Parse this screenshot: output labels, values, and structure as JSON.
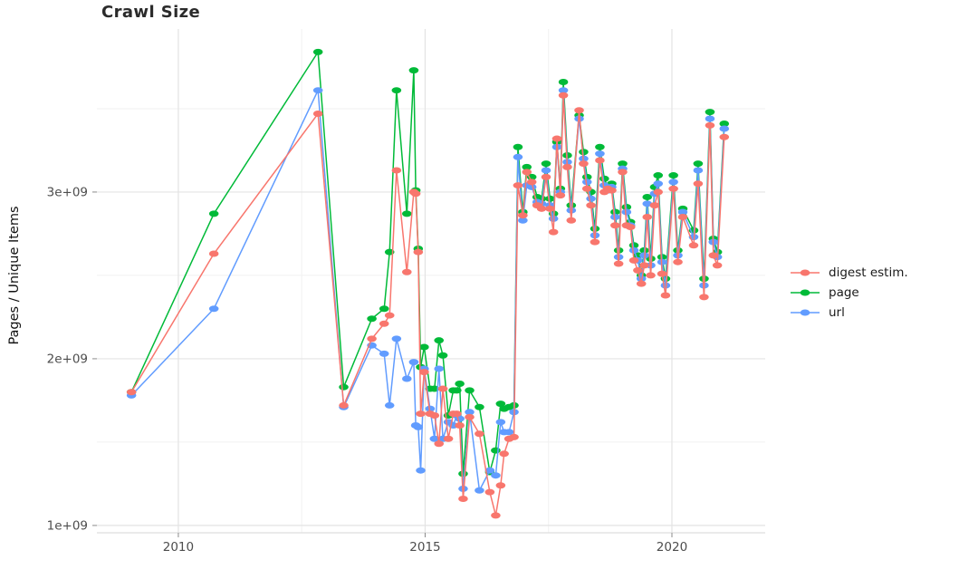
{
  "title": "Crawl Size",
  "chart_data": {
    "type": "line",
    "title": "Crawl Size",
    "xlabel": "",
    "ylabel": "Pages / Unique Items",
    "y_value_scale": "1e9",
    "grid": true,
    "legend_position": "right",
    "x_range": [
      2008.35,
      2021.89
    ],
    "y_range": [
      0.956,
      3.978
    ],
    "x_ticks": [
      {
        "label": "2010",
        "value": 2010
      },
      {
        "label": "2015",
        "value": 2015
      },
      {
        "label": "2020",
        "value": 2020
      }
    ],
    "y_ticks": [
      {
        "label": "1e+09",
        "value": 1
      },
      {
        "label": "2e+09",
        "value": 2
      },
      {
        "label": "3e+09",
        "value": 3
      }
    ],
    "x_minor": [
      2012.5,
      2017.5
    ],
    "y_minor": [
      1.5,
      2.5,
      3.5
    ],
    "x": [
      2009.05,
      2010.72,
      2012.83,
      2013.35,
      2013.92,
      2014.17,
      2014.28,
      2014.42,
      2014.63,
      2014.77,
      2014.81,
      2014.86,
      2014.91,
      2014.98,
      2015.1,
      2015.19,
      2015.28,
      2015.36,
      2015.47,
      2015.57,
      2015.64,
      2015.7,
      2015.77,
      2015.9,
      2016.1,
      2016.31,
      2016.43,
      2016.53,
      2016.6,
      2016.7,
      2016.8,
      2016.88,
      2016.98,
      2017.06,
      2017.16,
      2017.27,
      2017.36,
      2017.45,
      2017.53,
      2017.6,
      2017.67,
      2017.74,
      2017.8,
      2017.88,
      2017.96,
      2018.12,
      2018.21,
      2018.28,
      2018.36,
      2018.44,
      2018.54,
      2018.63,
      2018.7,
      2018.78,
      2018.85,
      2018.92,
      2019.0,
      2019.08,
      2019.16,
      2019.23,
      2019.31,
      2019.38,
      2019.44,
      2019.5,
      2019.57,
      2019.65,
      2019.72,
      2019.8,
      2019.87,
      2020.03,
      2020.12,
      2020.22,
      2020.44,
      2020.53,
      2020.65,
      2020.77,
      2020.84,
      2020.92,
      2021.06
    ],
    "draw_order": [
      1,
      2,
      0
    ],
    "series": [
      {
        "name": "digest estim.",
        "color": "#F8766D",
        "values": [
          1.8,
          2.63,
          3.47,
          1.72,
          2.12,
          2.21,
          2.26,
          3.13,
          2.52,
          3.0,
          2.99,
          2.64,
          1.67,
          1.92,
          1.67,
          1.66,
          1.49,
          1.82,
          1.52,
          1.67,
          1.67,
          1.6,
          1.16,
          1.65,
          1.55,
          1.2,
          1.06,
          1.24,
          1.43,
          1.52,
          1.53,
          3.04,
          2.86,
          3.12,
          3.06,
          2.92,
          2.9,
          3.09,
          2.9,
          2.76,
          3.32,
          2.98,
          3.58,
          3.15,
          2.83,
          3.49,
          3.17,
          3.02,
          2.92,
          2.7,
          3.19,
          3.0,
          3.02,
          3.01,
          2.8,
          2.57,
          3.12,
          2.8,
          2.79,
          2.59,
          2.53,
          2.45,
          2.56,
          2.85,
          2.5,
          2.92,
          3.0,
          2.51,
          2.38,
          3.02,
          2.58,
          2.85,
          2.68,
          3.05,
          2.37,
          3.4,
          2.62,
          2.56,
          3.33
        ]
      },
      {
        "name": "page",
        "color": "#00BA38",
        "values": [
          1.8,
          2.87,
          3.84,
          1.83,
          2.24,
          2.3,
          2.64,
          3.61,
          2.87,
          3.73,
          3.01,
          2.66,
          1.95,
          2.07,
          1.82,
          1.82,
          2.11,
          2.02,
          1.66,
          1.81,
          1.81,
          1.85,
          1.31,
          1.81,
          1.71,
          1.32,
          1.45,
          1.73,
          1.7,
          1.71,
          1.72,
          3.27,
          2.88,
          3.15,
          3.09,
          2.97,
          2.96,
          3.17,
          2.96,
          2.87,
          3.3,
          3.02,
          3.66,
          3.22,
          2.92,
          3.46,
          3.24,
          3.09,
          3.0,
          2.78,
          3.27,
          3.08,
          3.03,
          3.05,
          2.88,
          2.65,
          3.17,
          2.91,
          2.82,
          2.68,
          2.62,
          2.5,
          2.65,
          2.97,
          2.6,
          3.03,
          3.1,
          2.61,
          2.48,
          3.1,
          2.65,
          2.9,
          2.77,
          3.17,
          2.48,
          3.48,
          2.72,
          2.64,
          3.41
        ]
      },
      {
        "name": "url",
        "color": "#619CFF",
        "values": [
          1.78,
          2.3,
          3.61,
          1.71,
          2.08,
          2.03,
          1.72,
          2.12,
          1.88,
          1.98,
          1.6,
          1.59,
          1.33,
          1.94,
          1.7,
          1.52,
          1.94,
          1.52,
          1.62,
          1.6,
          1.66,
          1.64,
          1.22,
          1.68,
          1.21,
          1.33,
          1.3,
          1.62,
          1.56,
          1.56,
          1.68,
          3.21,
          2.83,
          3.04,
          3.03,
          2.94,
          2.93,
          3.13,
          2.92,
          2.84,
          3.27,
          3.0,
          3.61,
          3.18,
          2.89,
          3.44,
          3.2,
          3.06,
          2.96,
          2.74,
          3.23,
          3.04,
          3.01,
          3.03,
          2.85,
          2.61,
          3.14,
          2.88,
          2.8,
          2.65,
          2.59,
          2.48,
          2.62,
          2.93,
          2.56,
          2.99,
          3.05,
          2.58,
          2.44,
          3.06,
          2.62,
          2.88,
          2.73,
          3.13,
          2.44,
          3.44,
          2.7,
          2.61,
          3.38
        ]
      }
    ]
  },
  "style": {
    "major_grid": "#E3E3E3",
    "minor_grid": "#F1F1F1",
    "axis_line": "#DEDEDE",
    "tick": "#8A8A8A",
    "tick_label_color": "#4D4D4D"
  }
}
